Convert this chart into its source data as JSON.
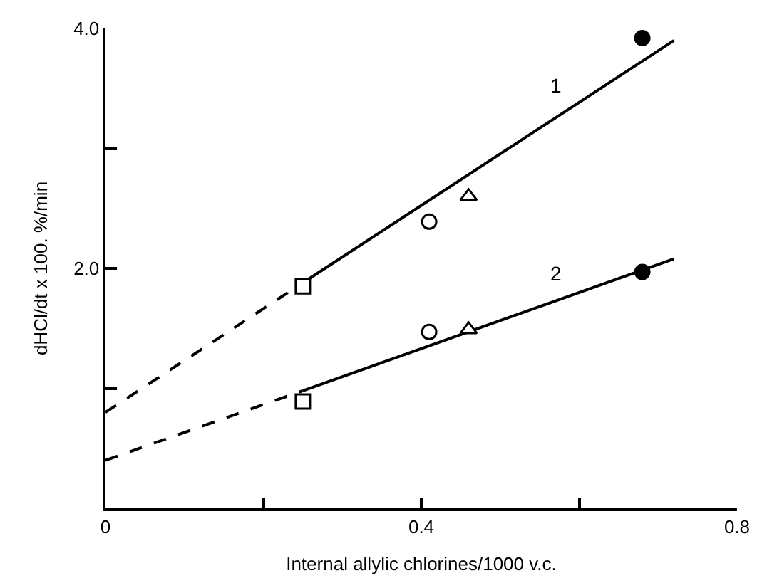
{
  "chart_data": {
    "type": "scatter",
    "xlabel": "Internal allylic chlorines/1000 v.c.",
    "ylabel": "dHCl/dt x 100. %/min",
    "xlim": [
      0,
      0.8
    ],
    "xticks": [
      0,
      {
        "value": 0.2,
        "label": null
      },
      0.4,
      {
        "value": 0.6,
        "label": null
      },
      0.8
    ],
    "ylim": [
      0,
      4.0
    ],
    "yticks": [
      {
        "value": 1.0,
        "label": null
      },
      {
        "value": 2.0,
        "label": "2.0"
      },
      {
        "value": 3.0,
        "label": null
      },
      {
        "value": 4.0,
        "label": "4.0"
      }
    ],
    "legend": false,
    "series": [
      {
        "type": "line",
        "color": "#000000",
        "marker": "none",
        "line_style": "dashed",
        "x": [
          0,
          0.25
        ],
        "values": [
          0.8,
          1.88
        ]
      },
      {
        "type": "line",
        "name": "1",
        "color": "#000000",
        "marker": "none",
        "line_style": "solid",
        "x": [
          0.25,
          0.72
        ],
        "values": [
          1.88,
          3.9
        ]
      },
      {
        "type": "line",
        "color": "#000000",
        "marker": "none",
        "line_style": "dashed",
        "x": [
          0,
          0.25
        ],
        "values": [
          0.4,
          0.98
        ]
      },
      {
        "type": "line",
        "name": "2",
        "color": "#000000",
        "marker": "none",
        "line_style": "solid",
        "x": [
          0.25,
          0.72
        ],
        "values": [
          0.98,
          2.08
        ]
      },
      {
        "color": "#ffffff",
        "marker": "square",
        "x": [
          0.25,
          0.25
        ],
        "values": [
          1.85,
          0.89
        ]
      },
      {
        "color": "#ffffff",
        "marker": "circle",
        "x": [
          0.41,
          0.41
        ],
        "values": [
          2.39,
          1.47
        ]
      },
      {
        "color": "#ffffff",
        "marker": "triangle",
        "x": [
          0.46,
          0.46
        ],
        "values": [
          2.6,
          1.49
        ]
      },
      {
        "color": "#000000",
        "marker": "circle",
        "x": [
          0.68,
          0.68
        ],
        "values": [
          3.92,
          1.97
        ]
      }
    ]
  }
}
